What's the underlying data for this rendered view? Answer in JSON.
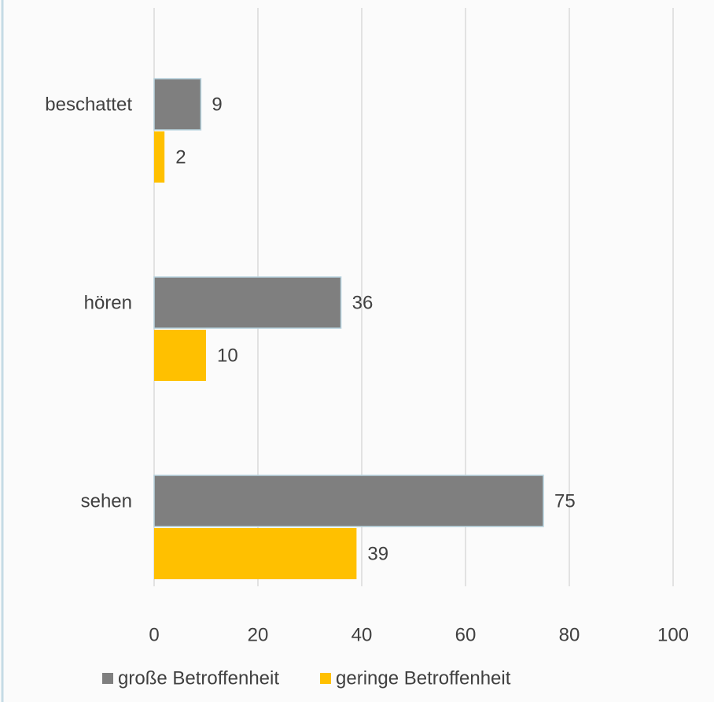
{
  "chart_data": {
    "type": "bar",
    "categories": [
      "beschattet",
      "hören",
      "sehen"
    ],
    "series": [
      {
        "name": "große Betroffenheit",
        "color": "#7f7f7f",
        "values": [
          9,
          36,
          75
        ]
      },
      {
        "name": "geringe Betroffenheit",
        "color": "#ffc000",
        "values": [
          2,
          10,
          39
        ]
      }
    ],
    "xlim": [
      0,
      100
    ],
    "xticks": [
      0,
      20,
      40,
      60,
      80,
      100
    ],
    "grid": true
  }
}
